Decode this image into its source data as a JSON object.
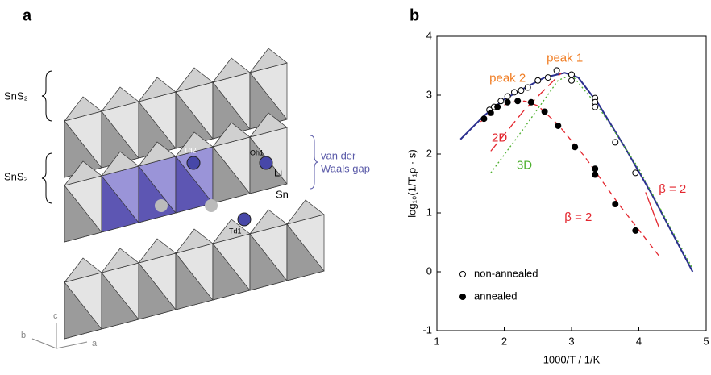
{
  "panel_a": {
    "panel_label": "a",
    "labels": {
      "sns2_top": "SnS₂",
      "sns2_mid": "SnS₂",
      "gap_line1": "van der",
      "gap_line2": "Waals gap",
      "td2": "Td2",
      "oh1": "Oh1",
      "li": "Li",
      "sn": "Sn",
      "td1": "Td1",
      "axis_c": "c",
      "axis_b": "b",
      "axis_a": "a"
    }
  },
  "chart_data": {
    "type": "scatter",
    "panel_label": "b",
    "x_label": "1000/T / 1/K",
    "y_label": "log₁₀(1/T₁ρ · s)",
    "xlim": [
      1,
      5
    ],
    "ylim": [
      -1,
      4
    ],
    "xticks": [
      1,
      2,
      3,
      4,
      5
    ],
    "yticks": [
      -1,
      0,
      1,
      2,
      3,
      4
    ],
    "legend": "lower-left",
    "series": [
      {
        "name": "non-annealed",
        "marker": "open",
        "color": "#000000",
        "x": [
          1.78,
          1.85,
          1.95,
          2.05,
          2.15,
          2.25,
          2.35,
          2.5,
          2.65,
          2.78,
          3.0,
          3.0,
          3.35,
          3.35,
          3.35,
          3.65,
          3.95
        ],
        "values": [
          2.75,
          2.8,
          2.9,
          2.98,
          3.05,
          3.08,
          3.13,
          3.25,
          3.3,
          3.42,
          3.35,
          3.25,
          2.95,
          2.88,
          2.8,
          2.2,
          1.68
        ]
      },
      {
        "name": "annealed",
        "marker": "filled",
        "color": "#000000",
        "x": [
          1.7,
          1.8,
          1.9,
          2.05,
          2.2,
          2.4,
          2.6,
          2.8,
          3.05,
          3.35,
          3.35,
          3.65,
          3.95
        ],
        "values": [
          2.6,
          2.7,
          2.8,
          2.88,
          2.9,
          2.88,
          2.72,
          2.48,
          2.12,
          1.75,
          1.65,
          1.15,
          0.7
        ]
      }
    ],
    "fits": [
      {
        "color": "#2b2f8f",
        "dash": "none",
        "x": [
          1.35,
          1.7,
          2.0,
          2.3,
          2.6,
          2.9,
          3.1,
          3.4,
          3.8,
          4.2,
          4.8
        ],
        "values": [
          2.25,
          2.65,
          2.93,
          3.12,
          3.3,
          3.38,
          3.3,
          2.85,
          2.1,
          1.3,
          0.0
        ]
      },
      {
        "color": "#e3262e",
        "dash": "7 5",
        "x": [
          1.65,
          1.9,
          2.1,
          2.3,
          2.5,
          2.8,
          3.2,
          3.7,
          4.3
        ],
        "values": [
          2.55,
          2.78,
          2.88,
          2.9,
          2.82,
          2.5,
          1.95,
          1.15,
          0.27
        ]
      },
      {
        "color": "#e3262e",
        "dash": "12 6",
        "x": [
          1.8,
          2.3,
          2.85
        ],
        "values": [
          2.05,
          2.75,
          3.38
        ]
      },
      {
        "color": "#4daf2e",
        "dash": "2 3",
        "x": [
          1.8,
          2.3,
          2.8,
          3.0,
          3.4,
          4.0,
          4.8
        ],
        "values": [
          1.68,
          2.45,
          3.25,
          3.35,
          2.8,
          1.75,
          0.05
        ]
      },
      {
        "color": "#e3262e",
        "dash": "none",
        "x": [
          4.1,
          4.3
        ],
        "values": [
          1.35,
          0.75
        ]
      }
    ],
    "annotations": [
      {
        "text": "peak 1",
        "color": "#f07c22",
        "x": 2.9,
        "y": 3.62
      },
      {
        "text": "peak 2",
        "color": "#f07c22",
        "x": 2.05,
        "y": 3.28
      },
      {
        "text": "2D",
        "color": "#e3262e",
        "x": 1.93,
        "y": 2.27
      },
      {
        "text": "3D",
        "color": "#4daf2e",
        "x": 2.3,
        "y": 1.8
      },
      {
        "text": "β = 2",
        "color": "#e3262e",
        "x": 3.1,
        "y": 0.92
      },
      {
        "text": "β = 2",
        "color": "#e3262e",
        "x": 4.5,
        "y": 1.4
      }
    ]
  }
}
